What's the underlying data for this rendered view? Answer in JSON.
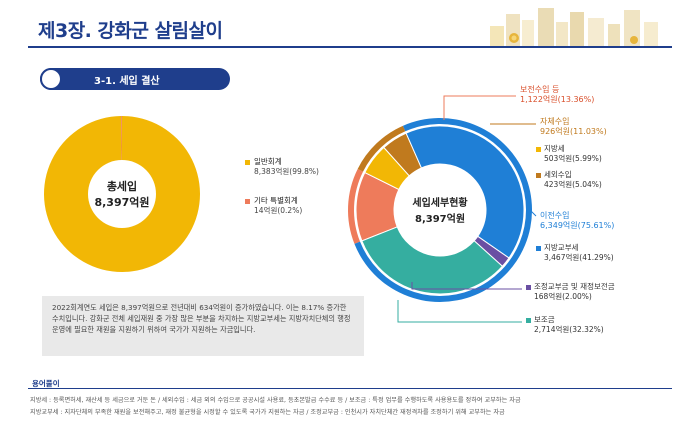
{
  "page_title": "제3장. 강화군 살림살이",
  "section_title": "3-1. 세입 결산",
  "colors": {
    "gold": "#f2b705",
    "salmon": "#ee7b5b",
    "blue": "#1f7fd6",
    "teal": "#35aea0",
    "brown": "#c07a1e",
    "purple": "#6a4fa3",
    "navy": "#1f3e8c"
  },
  "chart_data": [
    {
      "type": "pie",
      "center_title": "총세입",
      "center_value": "8,397억원",
      "categories": [
        "일반회계",
        "기타 특별회계"
      ],
      "values": [
        8383,
        14
      ],
      "value_labels": [
        "8,383억원(99.8%)",
        "14억원(0.2%)"
      ]
    },
    {
      "type": "pie",
      "center_title": "세입세부현황",
      "center_value": "8,397억원",
      "categories": [
        "보전수입 등",
        "자체수입",
        "지방세",
        "세외수입",
        "이전수입",
        "지방교부세",
        "조정교부금 및 재정보전금",
        "보조금"
      ],
      "value_labels": [
        "1,122억원(13.36%)",
        "926억원(11.03%)",
        "503억원(5.99%)",
        "423억원(5.04%)",
        "6,349억원(75.61%)",
        "3,467억원(41.29%)",
        "168억원(2.00%)",
        "2,714억원(32.32%)"
      ],
      "outer_ring": [
        {
          "name": "보전수입 등",
          "value": 1122
        },
        {
          "name": "자체수입",
          "value": 926
        },
        {
          "name": "이전수입",
          "value": 6349
        }
      ],
      "inner_ring": [
        {
          "name": "보전수입 등",
          "value": 1122
        },
        {
          "name": "지방세",
          "value": 503
        },
        {
          "name": "세외수입",
          "value": 423
        },
        {
          "name": "지방교부세",
          "value": 3467
        },
        {
          "name": "조정교부금 및 재정보전금",
          "value": 168
        },
        {
          "name": "보조금",
          "value": 2714
        }
      ]
    }
  ],
  "summary_text": "2022회계연도 세입은 8,397억원으로 전년대비 634억원이 증가하였습니다. 이는 8.17% 증가한 수치입니다. 강화군 전체 세입재원 중 가장 많은 부분을 차지하는 지방교부세는 지방자치단체의 행정운영에 필요한 재원을 지원하기 위하여 국가가 지원하는 자금입니다.",
  "glossary": {
    "heading": "용어풀이",
    "line1": "지방세 : 등록면허세, 재산세 등 세금으로 거둔 돈 / 세외수입 : 세금 외의 수입으로 공공시설 사용료, 등초본발급 수수료 등 / 보조금 : 특정 업무를 수행하도록 사용용도를 정하여 교부하는 자금",
    "line2": "지방교부세 : 지자단체의 부족한 재원을 보전해주고, 재정 불균형을 시정할 수 있도록 국가가 지원하는 자금 / 조정교부금 : 인천시가 자치단체간 재정격차를 조정하기 위해 교부하는 자금"
  }
}
